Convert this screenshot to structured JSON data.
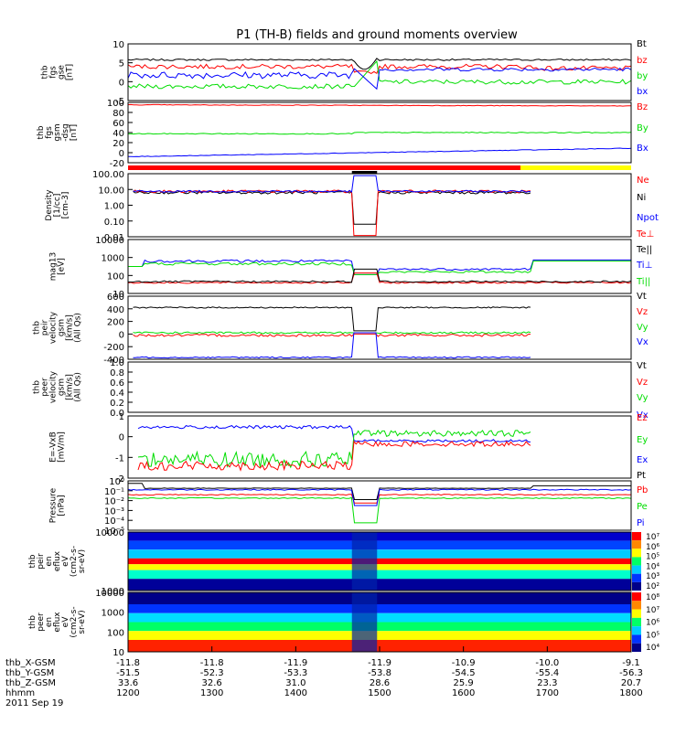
{
  "title": "P1 (TH-B) fields and ground moments overview",
  "time_ticks": [
    "1200",
    "1300",
    "1400",
    "1500",
    "1600",
    "1700",
    "1800"
  ],
  "ephemeris": {
    "rows": [
      {
        "label": "thb_X-GSM",
        "values": [
          "-11.8",
          "-11.8",
          "-11.9",
          "-11.9",
          "-10.9",
          "-10.0",
          "-9.1"
        ]
      },
      {
        "label": "thb_Y-GSM",
        "values": [
          "-51.5",
          "-52.3",
          "-53.3",
          "-53.8",
          "-54.5",
          "-55.4",
          "-56.3"
        ]
      },
      {
        "label": "thb_Z-GSM",
        "values": [
          "33.6",
          "32.6",
          "31.0",
          "28.6",
          "25.9",
          "23.3",
          "20.7"
        ]
      },
      {
        "label": "hhmm",
        "values": [
          "1200",
          "1300",
          "1400",
          "1500",
          "1600",
          "1700",
          "1800"
        ]
      }
    ],
    "date": "2011 Sep 19"
  },
  "colors": {
    "black": "#000000",
    "red": "#ff0000",
    "green": "#00dd00",
    "blue": "#0000ff",
    "yellow": "#ffff00"
  },
  "chart_data": [
    {
      "type": "line",
      "name": "fgs_gse",
      "ylabel": [
        "thb",
        "fgs",
        "gse",
        "[nT]"
      ],
      "ylim": [
        -5,
        10
      ],
      "yticks": [
        "10",
        "5",
        "0",
        "-5"
      ],
      "series": [
        {
          "name": "Bt",
          "color": "#000000"
        },
        {
          "name": "bz",
          "color": "#ff0000"
        },
        {
          "name": "by",
          "color": "#00dd00"
        },
        {
          "name": "bx",
          "color": "#0000ff"
        }
      ]
    },
    {
      "type": "line",
      "name": "fgs_gsm",
      "ylabel": [
        "thb",
        "fgs",
        "gsm",
        "-dsg",
        "[nT]"
      ],
      "ylim": [
        -30,
        100
      ],
      "yticks": [
        "100",
        "80",
        "60",
        "40",
        "20",
        "0",
        "-20"
      ],
      "series": [
        {
          "name": "Bz",
          "color": "#ff0000"
        },
        {
          "name": "By",
          "color": "#00dd00"
        },
        {
          "name": "Bx",
          "color": "#0000ff"
        }
      ]
    },
    {
      "type": "line",
      "name": "density",
      "ylabel": [
        "Density",
        "[1/cc]",
        "[cm-3]"
      ],
      "ylim": [
        0.01,
        100
      ],
      "scale": "log",
      "yticks": [
        "100.00",
        "10.00",
        "1.00",
        "0.10",
        "0.01"
      ],
      "series": [
        {
          "name": "Ne",
          "color": "#ff0000"
        },
        {
          "name": "Ni",
          "color": "#000000"
        },
        {
          "name": "Npot",
          "color": "#0000ff"
        }
      ]
    },
    {
      "type": "line",
      "name": "temperature",
      "ylabel": [
        "mag13",
        "[eV]"
      ],
      "ylim": [
        10,
        10000
      ],
      "scale": "log",
      "yticks": [
        "10000",
        "1000",
        "100",
        "10"
      ],
      "series": [
        {
          "name": "Te⊥",
          "color": "#ff0000"
        },
        {
          "name": "Te||",
          "color": "#000000"
        },
        {
          "name": "Ti⊥",
          "color": "#0000ff"
        },
        {
          "name": "Ti||",
          "color": "#00dd00"
        }
      ]
    },
    {
      "type": "line",
      "name": "peir_velocity",
      "ylabel": [
        "thb",
        "peir",
        "velocity",
        "gsm",
        "[km/s]",
        "(All Qs)"
      ],
      "ylim": [
        -400,
        600
      ],
      "yticks": [
        "600",
        "400",
        "200",
        "0",
        "-200",
        "-400"
      ],
      "series": [
        {
          "name": "Vt",
          "color": "#000000"
        },
        {
          "name": "Vz",
          "color": "#ff0000"
        },
        {
          "name": "Vy",
          "color": "#00dd00"
        },
        {
          "name": "Vx",
          "color": "#0000ff"
        }
      ]
    },
    {
      "type": "line",
      "name": "peer_velocity",
      "ylabel": [
        "thb",
        "peer",
        "velocity",
        "gsm",
        "[km/s]",
        "(All Qs)"
      ],
      "ylim": [
        0,
        1
      ],
      "yticks": [
        "1.0",
        "0.8",
        "0.6",
        "0.4",
        "0.2",
        "0.0"
      ],
      "series": [
        {
          "name": "Vt",
          "color": "#000000"
        },
        {
          "name": "Vz",
          "color": "#ff0000"
        },
        {
          "name": "Vy",
          "color": "#00dd00"
        },
        {
          "name": "Vx",
          "color": "#0000ff"
        }
      ]
    },
    {
      "type": "line",
      "name": "e_field",
      "ylabel": [
        "E=-VxB",
        "[mV/m]"
      ],
      "ylim": [
        -2,
        1
      ],
      "yticks": [
        "1",
        "0",
        "-1",
        "-2"
      ],
      "series": [
        {
          "name": "Ez",
          "color": "#ff0000"
        },
        {
          "name": "Ey",
          "color": "#00dd00"
        },
        {
          "name": "Ex",
          "color": "#0000ff"
        }
      ]
    },
    {
      "type": "line",
      "name": "pressure",
      "ylabel": [
        "Pressure",
        "[nPa]"
      ],
      "ylim": [
        1e-05,
        1
      ],
      "scale": "log",
      "yticks": [
        "10⁰",
        "10⁻¹",
        "10⁻²",
        "10⁻³",
        "10⁻⁴",
        "10⁻⁵"
      ],
      "series": [
        {
          "name": "Pt",
          "color": "#000000"
        },
        {
          "name": "Pb",
          "color": "#ff0000"
        },
        {
          "name": "Pe",
          "color": "#00dd00"
        },
        {
          "name": "Pi",
          "color": "#0000ff"
        }
      ]
    },
    {
      "type": "heatmap",
      "name": "peir_eflux",
      "ylabel": [
        "thb",
        "peir",
        "en",
        "eflux",
        "eV",
        "(cm2-s-",
        "sr-eV)"
      ],
      "yticks": [
        "10000",
        "1000"
      ],
      "colorbar_ticks": [
        "10⁷",
        "10⁶",
        "10⁵",
        "10⁴",
        "10³",
        "10²"
      ]
    },
    {
      "type": "heatmap",
      "name": "peer_eflux",
      "ylabel": [
        "thb",
        "peer",
        "en",
        "eflux",
        "eV",
        "(cm2-s-",
        "sr-eV)"
      ],
      "yticks": [
        "10000",
        "1000",
        "100",
        "10"
      ],
      "colorbar_ticks": [
        "10⁸",
        "10⁷",
        "10⁶",
        "10⁵",
        "10⁴"
      ]
    }
  ]
}
